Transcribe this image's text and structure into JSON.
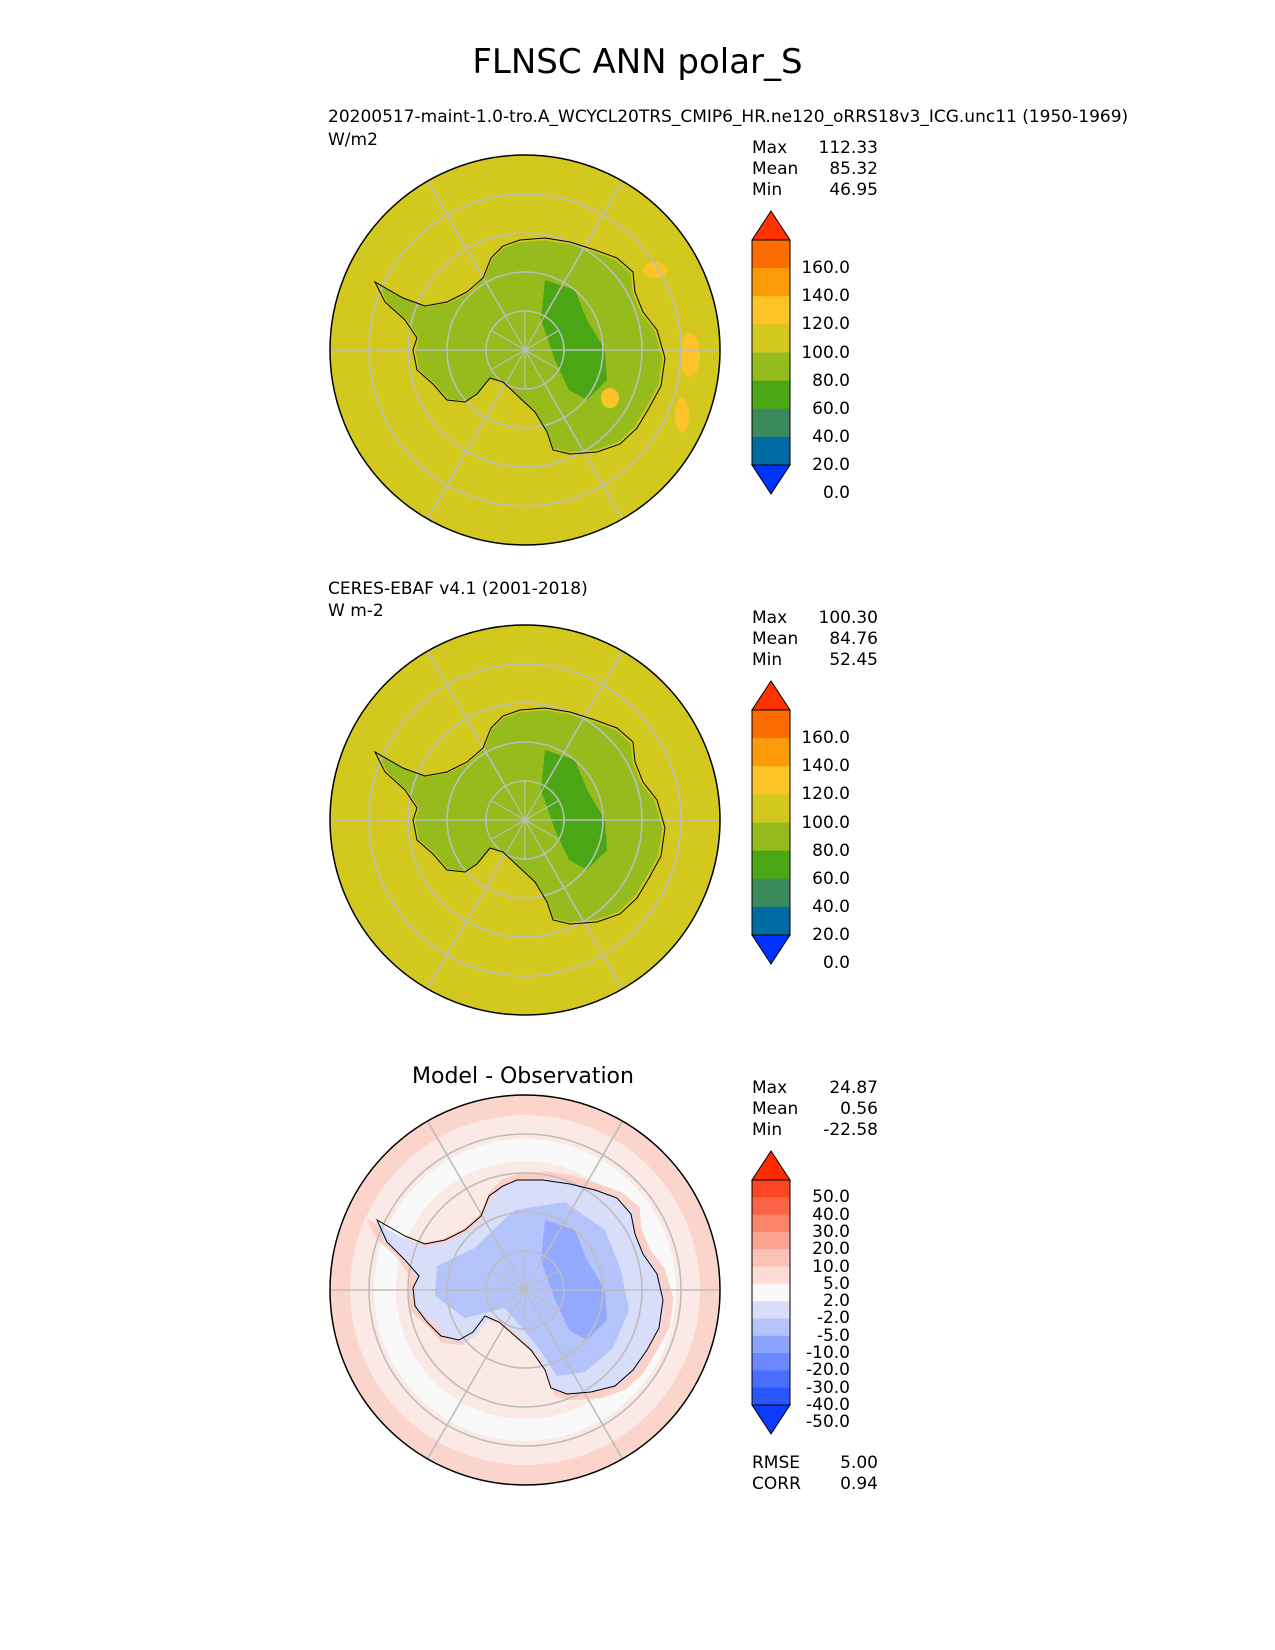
{
  "title": "FLNSC ANN polar_S",
  "chart_data": [
    {
      "type": "heatmap",
      "projection": "south-polar-stereographic",
      "title_left": "20200517-maint-1.0-tro.A_WCYCL20TRS_CMIP6_HR.ne120_oRRS18v3_ICG.unc11 (1950-1969)",
      "units": "W/m2",
      "stats": [
        {
          "label": "Max",
          "value": "112.33"
        },
        {
          "label": "Mean",
          "value": "85.32"
        },
        {
          "label": "Min",
          "value": "46.95"
        }
      ],
      "colorbar": {
        "levels": [
          0,
          20,
          40,
          60,
          80,
          100,
          120,
          140,
          160
        ],
        "tick_labels": [
          "160.0",
          "140.0",
          "120.0",
          "100.0",
          "80.0",
          "60.0",
          "40.0",
          "20.0",
          "0.0"
        ],
        "colors": [
          "#0033ff",
          "#006ba3",
          "#3a8a5c",
          "#4aa614",
          "#96bb1c",
          "#d2c81e",
          "#fcc427",
          "#fd9a0a",
          "#fe6b00",
          "#ff3300"
        ]
      }
    },
    {
      "type": "heatmap",
      "projection": "south-polar-stereographic",
      "title_left": "CERES-EBAF v4.1 (2001-2018)",
      "units": "W m-2",
      "stats": [
        {
          "label": "Max",
          "value": "100.30"
        },
        {
          "label": "Mean",
          "value": "84.76"
        },
        {
          "label": "Min",
          "value": "52.45"
        }
      ],
      "colorbar": {
        "levels": [
          0,
          20,
          40,
          60,
          80,
          100,
          120,
          140,
          160
        ],
        "tick_labels": [
          "160.0",
          "140.0",
          "120.0",
          "100.0",
          "80.0",
          "60.0",
          "40.0",
          "20.0",
          "0.0"
        ],
        "colors": [
          "#0033ff",
          "#006ba3",
          "#3a8a5c",
          "#4aa614",
          "#96bb1c",
          "#d2c81e",
          "#fcc427",
          "#fd9a0a",
          "#fe6b00",
          "#ff3300"
        ]
      }
    },
    {
      "type": "heatmap",
      "projection": "south-polar-stereographic",
      "title_center": "Model - Observation",
      "stats": [
        {
          "label": "Max",
          "value": "24.87"
        },
        {
          "label": "Mean",
          "value": "0.56"
        },
        {
          "label": "Min",
          "value": "-22.58"
        }
      ],
      "metrics": [
        {
          "label": "RMSE",
          "value": "5.00"
        },
        {
          "label": "CORR",
          "value": "0.94"
        }
      ],
      "colorbar": {
        "levels": [
          -50,
          -40,
          -30,
          -20,
          -10,
          -5,
          -2,
          2,
          5,
          10,
          20,
          30,
          40,
          50
        ],
        "tick_labels": [
          "50.0",
          "40.0",
          "30.0",
          "20.0",
          "10.0",
          "5.0",
          "2.0",
          "-2.0",
          "-5.0",
          "-10.0",
          "-20.0",
          "-30.0",
          "-40.0",
          "-50.0"
        ],
        "colors": [
          "#0b3bff",
          "#2a55ff",
          "#4a6fff",
          "#6a89ff",
          "#8aa3ff",
          "#b4c4fb",
          "#d8defa",
          "#f9f9f9",
          "#fcdcd4",
          "#fcc2b6",
          "#fca391",
          "#fc8469",
          "#fc6245",
          "#fc4522",
          "#ff2a00"
        ]
      }
    }
  ]
}
